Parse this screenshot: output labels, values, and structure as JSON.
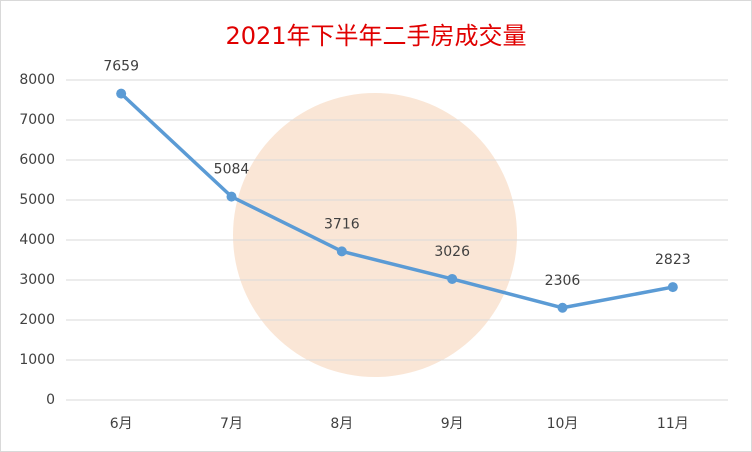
{
  "chart_data": {
    "type": "line",
    "title": "2021年下半年二手房成交量",
    "categories": [
      "6月",
      "7月",
      "8月",
      "9月",
      "10月",
      "11月"
    ],
    "values": [
      7659,
      5084,
      3716,
      3026,
      2306,
      2823
    ],
    "color": "#5b9bd5",
    "ylim": [
      0,
      8000
    ],
    "yticks": [
      0,
      1000,
      2000,
      3000,
      4000,
      5000,
      6000,
      7000,
      8000
    ],
    "grid": true
  }
}
